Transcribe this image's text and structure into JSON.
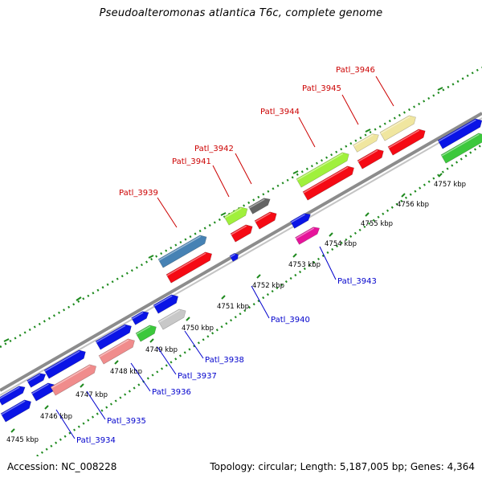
{
  "title": "Pseudoalteromonas atlantica T6c, complete genome",
  "footer": {
    "accession": "Accession: NC_008228",
    "summary": "Topology: circular; Length: 5,187,005 bp; Genes: 4,364"
  },
  "colors": {
    "backbone": "#8c8c8c",
    "tick": "#1e8a1e",
    "label_top": "#cc0000",
    "label_bottom": "#0000cc",
    "kbp_text": "#000000"
  },
  "ruler": {
    "unit": "kbp",
    "ticks": [
      {
        "kbp": 4745,
        "label": "4745 kbp"
      },
      {
        "kbp": 4746,
        "label": "4746 kbp"
      },
      {
        "kbp": 4747,
        "label": "4747 kbp"
      },
      {
        "kbp": 4748,
        "label": "4748 kbp"
      },
      {
        "kbp": 4749,
        "label": "4749 kbp"
      },
      {
        "kbp": 4750,
        "label": "4750 kbp"
      },
      {
        "kbp": 4751,
        "label": "4751 kbp"
      },
      {
        "kbp": 4752,
        "label": "4752 kbp"
      },
      {
        "kbp": 4753,
        "label": "4753 kbp"
      },
      {
        "kbp": 4754,
        "label": "4754 kbp"
      },
      {
        "kbp": 4755,
        "label": "4755 kbp"
      },
      {
        "kbp": 4756,
        "label": "4756 kbp"
      },
      {
        "kbp": 4757,
        "label": "4757 kbp"
      }
    ]
  },
  "gene_labels_top": [
    {
      "name": "Patl_3939"
    },
    {
      "name": "Patl_3941"
    },
    {
      "name": "Patl_3942"
    },
    {
      "name": "Patl_3944"
    },
    {
      "name": "Patl_3945"
    },
    {
      "name": "Patl_3946"
    }
  ],
  "gene_labels_bottom": [
    {
      "name": "Patl_3934"
    },
    {
      "name": "Patl_3935"
    },
    {
      "name": "Patl_3936"
    },
    {
      "name": "Patl_3937"
    },
    {
      "name": "Patl_3938"
    },
    {
      "name": "Patl_3940"
    },
    {
      "name": "Patl_3943"
    }
  ]
}
